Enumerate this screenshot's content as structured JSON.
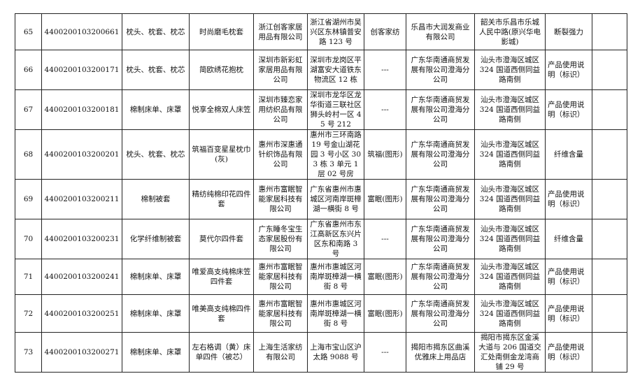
{
  "rows": [
    {
      "no": "65",
      "code": "4400200103200661",
      "category": "枕头、枕套、枕芯",
      "product": "时尚磨毛枕套",
      "producer": "浙江创客家居用品有限公司",
      "producer_addr": "浙江省湖州市吴兴区东林镇普安路 123 号",
      "trademark": "创客家纺",
      "seller": "乐昌市大润发商业有限公司",
      "seller_addr": "韶关市乐昌市乐城人民中路(原兴华电影城)",
      "item": "断裂强力",
      "extra": ""
    },
    {
      "no": "66",
      "code": "4400200103200171",
      "category": "枕头、枕套、枕芯",
      "product": "简欧绣花抱枕",
      "producer": "深圳市新彩虹家居用品有限公司",
      "producer_addr": "深圳市龙岗区平湖富安大道铁东物流区 12 栋",
      "trademark": "---",
      "seller": "广东华南通商贸发展有限公司澄海分公司",
      "seller_addr": "汕头市澄海区城区 324 国道西侧同益路南侧",
      "item": "产品使用说明（标识）",
      "extra": ""
    },
    {
      "no": "67",
      "code": "4400200103200181",
      "category": "棉制床单、床罩",
      "product": "悦享全棉双人床笠",
      "producer": "深圳市臻恋家用纺织品有限公司",
      "producer_addr": "深圳市龙华区龙华街道三联社区狮头岭村一区 45 号 212",
      "trademark": "---",
      "seller": "广东华南通商贸发展有限公司澄海分公司",
      "seller_addr": "汕头市澄海区城区 324 国道西侧同益路南侧",
      "item": "产品使用说明（标识）",
      "extra": ""
    },
    {
      "no": "68",
      "code": "4400200103200201",
      "category": "枕头、枕套、枕芯",
      "product": "筑福百变星星枕巾(灰)",
      "producer": "惠州市深惠通针织饰品有限公司",
      "producer_addr": "惠州市三环南路 19 号金山湖花园 3 号小区 303 栋 3 单元 1 层 02 号房",
      "trademark": "筑福(图形)",
      "seller": "广东华南通商贸发展有限公司澄海分公司",
      "seller_addr": "汕头市澄海区城区 324 国道西侧同益路南侧",
      "item": "纤维含量",
      "extra": ""
    },
    {
      "no": "69",
      "code": "4400200103200211",
      "category": "棉制被套",
      "product": "精纺纯棉印花四件套",
      "producer": "惠州市富眠智能家居科技有限公司",
      "producer_addr": "广东省惠州市惠城区河南岸斑樟湖一横街 8 号",
      "trademark": "富眠(图形)",
      "seller": "广东华南通商贸发展有限公司澄海分公司",
      "seller_addr": "汕头市澄海区城区 324 国道西侧同益路南侧",
      "item": "产品使用说明（标识）",
      "extra": ""
    },
    {
      "no": "70",
      "code": "4400200103200231",
      "category": "化学纤维制被套",
      "product": "莫代尔四件套",
      "producer": "广东睡冬宝生态家居股份有限公司",
      "producer_addr": "广东省惠州市东江高新区东兴片区东和南路 3 号",
      "trademark": "---",
      "seller": "广东华南通商贸发展有限公司澄海分公司",
      "seller_addr": "汕头市澄海区城区 324 国道西侧同益路南侧",
      "item": "纤维含量",
      "extra": ""
    },
    {
      "no": "71",
      "code": "4400200103200241",
      "category": "棉制床单、床罩",
      "product": "唯爱高支纯棉床笠四件套",
      "producer": "惠州市富眠智能家居科技有限公司",
      "producer_addr": "惠州市惠城区河南岸斑樟湖一横街 8 号",
      "trademark": "富眠(图形)",
      "seller": "广东华南通商贸发展有限公司澄海分公司",
      "seller_addr": "汕头市澄海区城区 324 国道西侧同益路南侧",
      "item": "产品使用说明（标识）",
      "extra": ""
    },
    {
      "no": "72",
      "code": "4400200103200251",
      "category": "棉制床单、床罩",
      "product": "唯美高支纯棉四件套",
      "producer": "惠州市富眠智能家居科技有限公司",
      "producer_addr": "惠州市惠城区河南岸斑樟湖一横街 8 号",
      "trademark": "富眠(图形)",
      "seller": "广东华南通商贸发展有限公司澄海分公司",
      "seller_addr": "汕头市澄海区城区 324 国道西侧同益路南侧",
      "item": "产品使用说明（标识）",
      "extra": ""
    },
    {
      "no": "73",
      "code": "4400200103200271",
      "category": "棉制床单、床罩",
      "product": "左右格调（黄）床单四件（被芯）",
      "producer": "上海生活家纺有限公司",
      "producer_addr": "上海市宝山区沪太路 9088 号",
      "trademark": "---",
      "seller": "揭阳市揭东区曲溪优雅床上用品店",
      "seller_addr": "揭阳市揭东区金溪大道与 206 国道交汇处南侧金龙湾商铺 29 号",
      "item": "产品使用说明（标识）",
      "extra": ""
    }
  ]
}
